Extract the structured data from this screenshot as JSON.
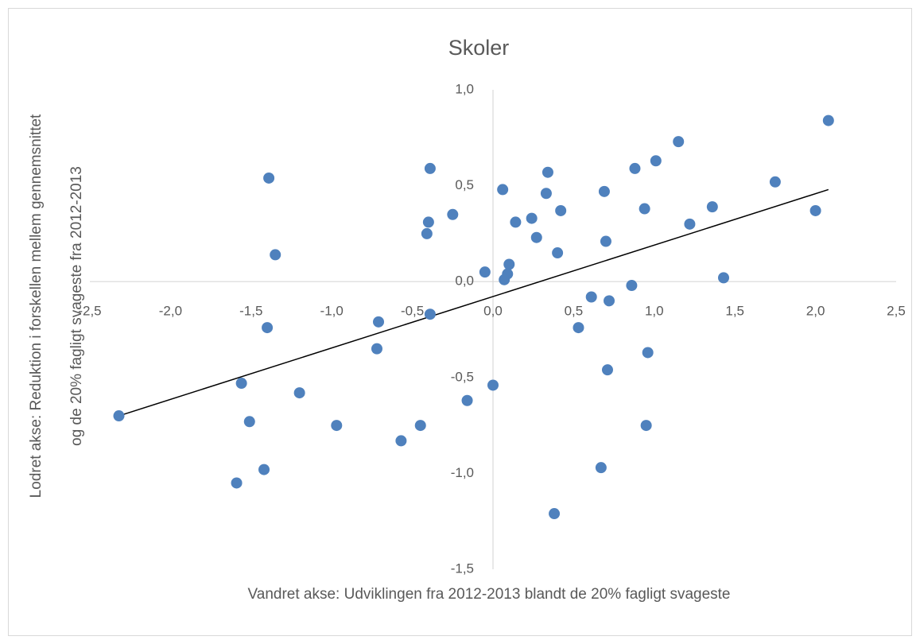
{
  "chart_data": {
    "type": "scatter",
    "title": "Skoler",
    "x_label": "Vandret akse: Udviklingen fra 2012-2013 blandt de 20% fagligt svageste",
    "y_label": [
      "Lodret akse: Reduktion i forskellen mellem gennemsnittet",
      "og de 20%  fagligt svageste fra 2012-2013"
    ],
    "color": "#4f81bd",
    "trendline_color": "#000000",
    "xlim": [
      -2.5,
      2.5
    ],
    "ylim": [
      -1.5,
      1.0
    ],
    "xticks": [
      {
        "value": -2.5,
        "label": "-2,5"
      },
      {
        "value": -2.0,
        "label": "-2,0"
      },
      {
        "value": -1.5,
        "label": "-1,5"
      },
      {
        "value": -1.0,
        "label": "-1,0"
      },
      {
        "value": -0.5,
        "label": "-0,5"
      },
      {
        "value": 0,
        "label": "0,0"
      },
      {
        "value": 0.5,
        "label": "0,5"
      },
      {
        "value": 1.0,
        "label": "1,0"
      },
      {
        "value": 1.5,
        "label": "1,5"
      },
      {
        "value": 2.0,
        "label": "2,0"
      },
      {
        "value": 2.5,
        "label": "2,5"
      }
    ],
    "yticks": [
      {
        "value": 1.0,
        "label": "1,0"
      },
      {
        "value": 0.5,
        "label": "0,5"
      },
      {
        "value": 0,
        "label": "0,0"
      },
      {
        "value": -0.5,
        "label": "-0,5"
      },
      {
        "value": -1.0,
        "label": "-1,0"
      },
      {
        "value": -1.5,
        "label": "-1,5"
      }
    ],
    "x": [
      -2.32,
      -1.39,
      -1.35,
      -1.4,
      -1.56,
      -1.51,
      -1.59,
      -1.42,
      -1.2,
      -0.97,
      -0.71,
      -0.72,
      -0.57,
      -0.45,
      -0.39,
      -0.4,
      -0.41,
      -0.39,
      -0.25,
      -0.16,
      -0.05,
      0.0,
      0.06,
      0.1,
      0.09,
      0.07,
      0.14,
      0.24,
      0.27,
      0.34,
      0.33,
      0.42,
      0.4,
      0.38,
      0.53,
      0.61,
      0.69,
      0.7,
      0.72,
      0.71,
      0.67,
      0.86,
      0.88,
      0.94,
      0.96,
      0.95,
      1.01,
      1.15,
      1.22,
      1.36,
      1.43,
      1.75,
      2.0,
      2.08
    ],
    "values": [
      -0.7,
      0.54,
      0.14,
      -0.24,
      -0.53,
      -0.73,
      -1.05,
      -0.98,
      -0.58,
      -0.75,
      -0.21,
      -0.35,
      -0.83,
      -0.75,
      0.59,
      0.31,
      0.25,
      -0.17,
      0.35,
      -0.62,
      0.05,
      -0.54,
      0.48,
      0.09,
      0.04,
      0.01,
      0.31,
      0.33,
      0.23,
      0.57,
      0.46,
      0.37,
      0.15,
      -1.21,
      -0.24,
      -0.08,
      0.47,
      0.21,
      -0.1,
      -0.46,
      -0.97,
      -0.02,
      0.59,
      0.38,
      -0.37,
      -0.75,
      0.63,
      0.73,
      0.3,
      0.39,
      0.02,
      0.52,
      0.37,
      0.84
    ],
    "trendline": {
      "x": [
        -2.32,
        2.08
      ],
      "y": [
        -0.7,
        0.48
      ]
    }
  }
}
